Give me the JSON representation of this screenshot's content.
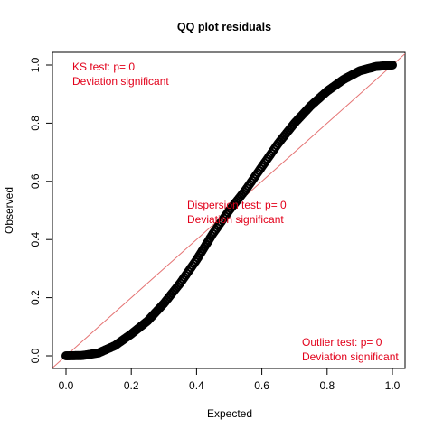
{
  "chart_data": {
    "type": "scatter",
    "title": "QQ plot residuals",
    "xlabel": "Expected",
    "ylabel": "Observed",
    "xlim": [
      0,
      1
    ],
    "ylim": [
      0,
      1
    ],
    "x_ticks": [
      "0.0",
      "0.2",
      "0.4",
      "0.6",
      "0.8",
      "1.0"
    ],
    "y_ticks": [
      "0.0",
      "0.2",
      "0.4",
      "0.6",
      "0.8",
      "1.0"
    ],
    "reference_line": {
      "intercept": 0,
      "slope": 1,
      "color": "#e57373"
    },
    "point_color": "#000000",
    "annotation_color": "#e2001a",
    "series": [
      {
        "values": [
          {
            "x": 0.0,
            "y": 0.0
          },
          {
            "x": 0.05,
            "y": 0.001
          },
          {
            "x": 0.1,
            "y": 0.01
          },
          {
            "x": 0.15,
            "y": 0.035
          },
          {
            "x": 0.2,
            "y": 0.075
          },
          {
            "x": 0.25,
            "y": 0.12
          },
          {
            "x": 0.3,
            "y": 0.18
          },
          {
            "x": 0.35,
            "y": 0.25
          },
          {
            "x": 0.4,
            "y": 0.33
          },
          {
            "x": 0.45,
            "y": 0.42
          },
          {
            "x": 0.5,
            "y": 0.5
          },
          {
            "x": 0.55,
            "y": 0.57
          },
          {
            "x": 0.6,
            "y": 0.65
          },
          {
            "x": 0.65,
            "y": 0.73
          },
          {
            "x": 0.7,
            "y": 0.8
          },
          {
            "x": 0.75,
            "y": 0.86
          },
          {
            "x": 0.8,
            "y": 0.91
          },
          {
            "x": 0.85,
            "y": 0.95
          },
          {
            "x": 0.9,
            "y": 0.98
          },
          {
            "x": 0.95,
            "y": 0.995
          },
          {
            "x": 1.0,
            "y": 1.0
          }
        ]
      }
    ],
    "annotations": [
      {
        "lines": [
          "KS test: p= 0",
          "Deviation  significant"
        ],
        "position": "top-left"
      },
      {
        "lines": [
          "Dispersion test: p= 0",
          "Deviation  significant"
        ],
        "position": "center"
      },
      {
        "lines": [
          "Outlier test: p= 0",
          "Deviation  significant"
        ],
        "position": "bottom-right"
      }
    ]
  }
}
